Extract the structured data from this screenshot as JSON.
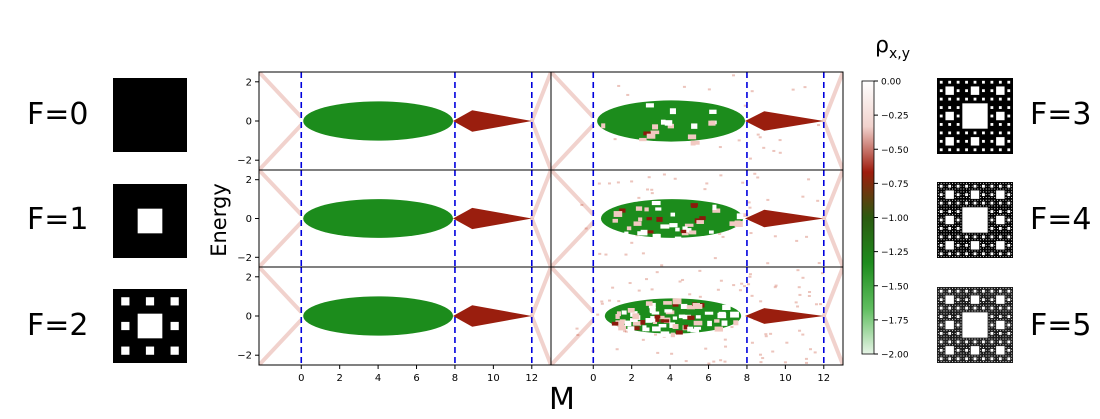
{
  "chart_data": {
    "type": "heatmap",
    "xlabel": "M",
    "ylabel": "Energy",
    "xlim": [
      -2.2,
      13
    ],
    "ylim": [
      -2.5,
      2.5
    ],
    "xticks": [
      "0",
      "2",
      "4",
      "6",
      "8",
      "10",
      "12"
    ],
    "yticks": [
      "-2",
      "0",
      "2"
    ],
    "vlines_x": [
      0,
      8,
      12
    ],
    "colorbar": {
      "label": "ρ",
      "label_sub": "x,y",
      "range": [
        -2.0,
        0.0
      ],
      "ticks": [
        "0.00",
        "-0.25",
        "-0.50",
        "-0.75",
        "-1.00",
        "-1.25",
        "-1.50",
        "-1.75",
        "-2.00"
      ],
      "colors": [
        "#ffffff",
        "#f1d2cd",
        "#9e1c0e",
        "#2b5a10",
        "#1e8c1e",
        "#5fbd5f",
        "#e6f4e6"
      ]
    },
    "panels": [
      {
        "fractal": "F=0",
        "column": "left",
        "row": 0,
        "ellipse": [
          0.1,
          7.9,
          1.0
        ],
        "tail_peak": 0.55,
        "noise": 0.02
      },
      {
        "fractal": "F=1",
        "column": "left",
        "row": 1,
        "ellipse": [
          0.1,
          7.9,
          1.0
        ],
        "tail_peak": 0.55,
        "noise": 0.02
      },
      {
        "fractal": "F=2",
        "column": "left",
        "row": 2,
        "ellipse": [
          0.1,
          7.9,
          1.0
        ],
        "tail_peak": 0.55,
        "noise": 0.03
      },
      {
        "fractal": "F=3",
        "column": "right",
        "row": 0,
        "ellipse": [
          0.2,
          7.9,
          1.05
        ],
        "tail_peak": 0.5,
        "noise": 0.15
      },
      {
        "fractal": "F=4",
        "column": "right",
        "row": 1,
        "ellipse": [
          0.4,
          7.8,
          1.0
        ],
        "tail_peak": 0.45,
        "noise": 0.35
      },
      {
        "fractal": "F=5",
        "column": "right",
        "row": 2,
        "ellipse": [
          0.6,
          7.7,
          0.9
        ],
        "tail_peak": 0.4,
        "noise": 0.6
      }
    ]
  },
  "fractal_labels": {
    "f0": "F=0",
    "f1": "F=1",
    "f2": "F=2",
    "f3": "F=3",
    "f4": "F=4",
    "f5": "F=5"
  }
}
